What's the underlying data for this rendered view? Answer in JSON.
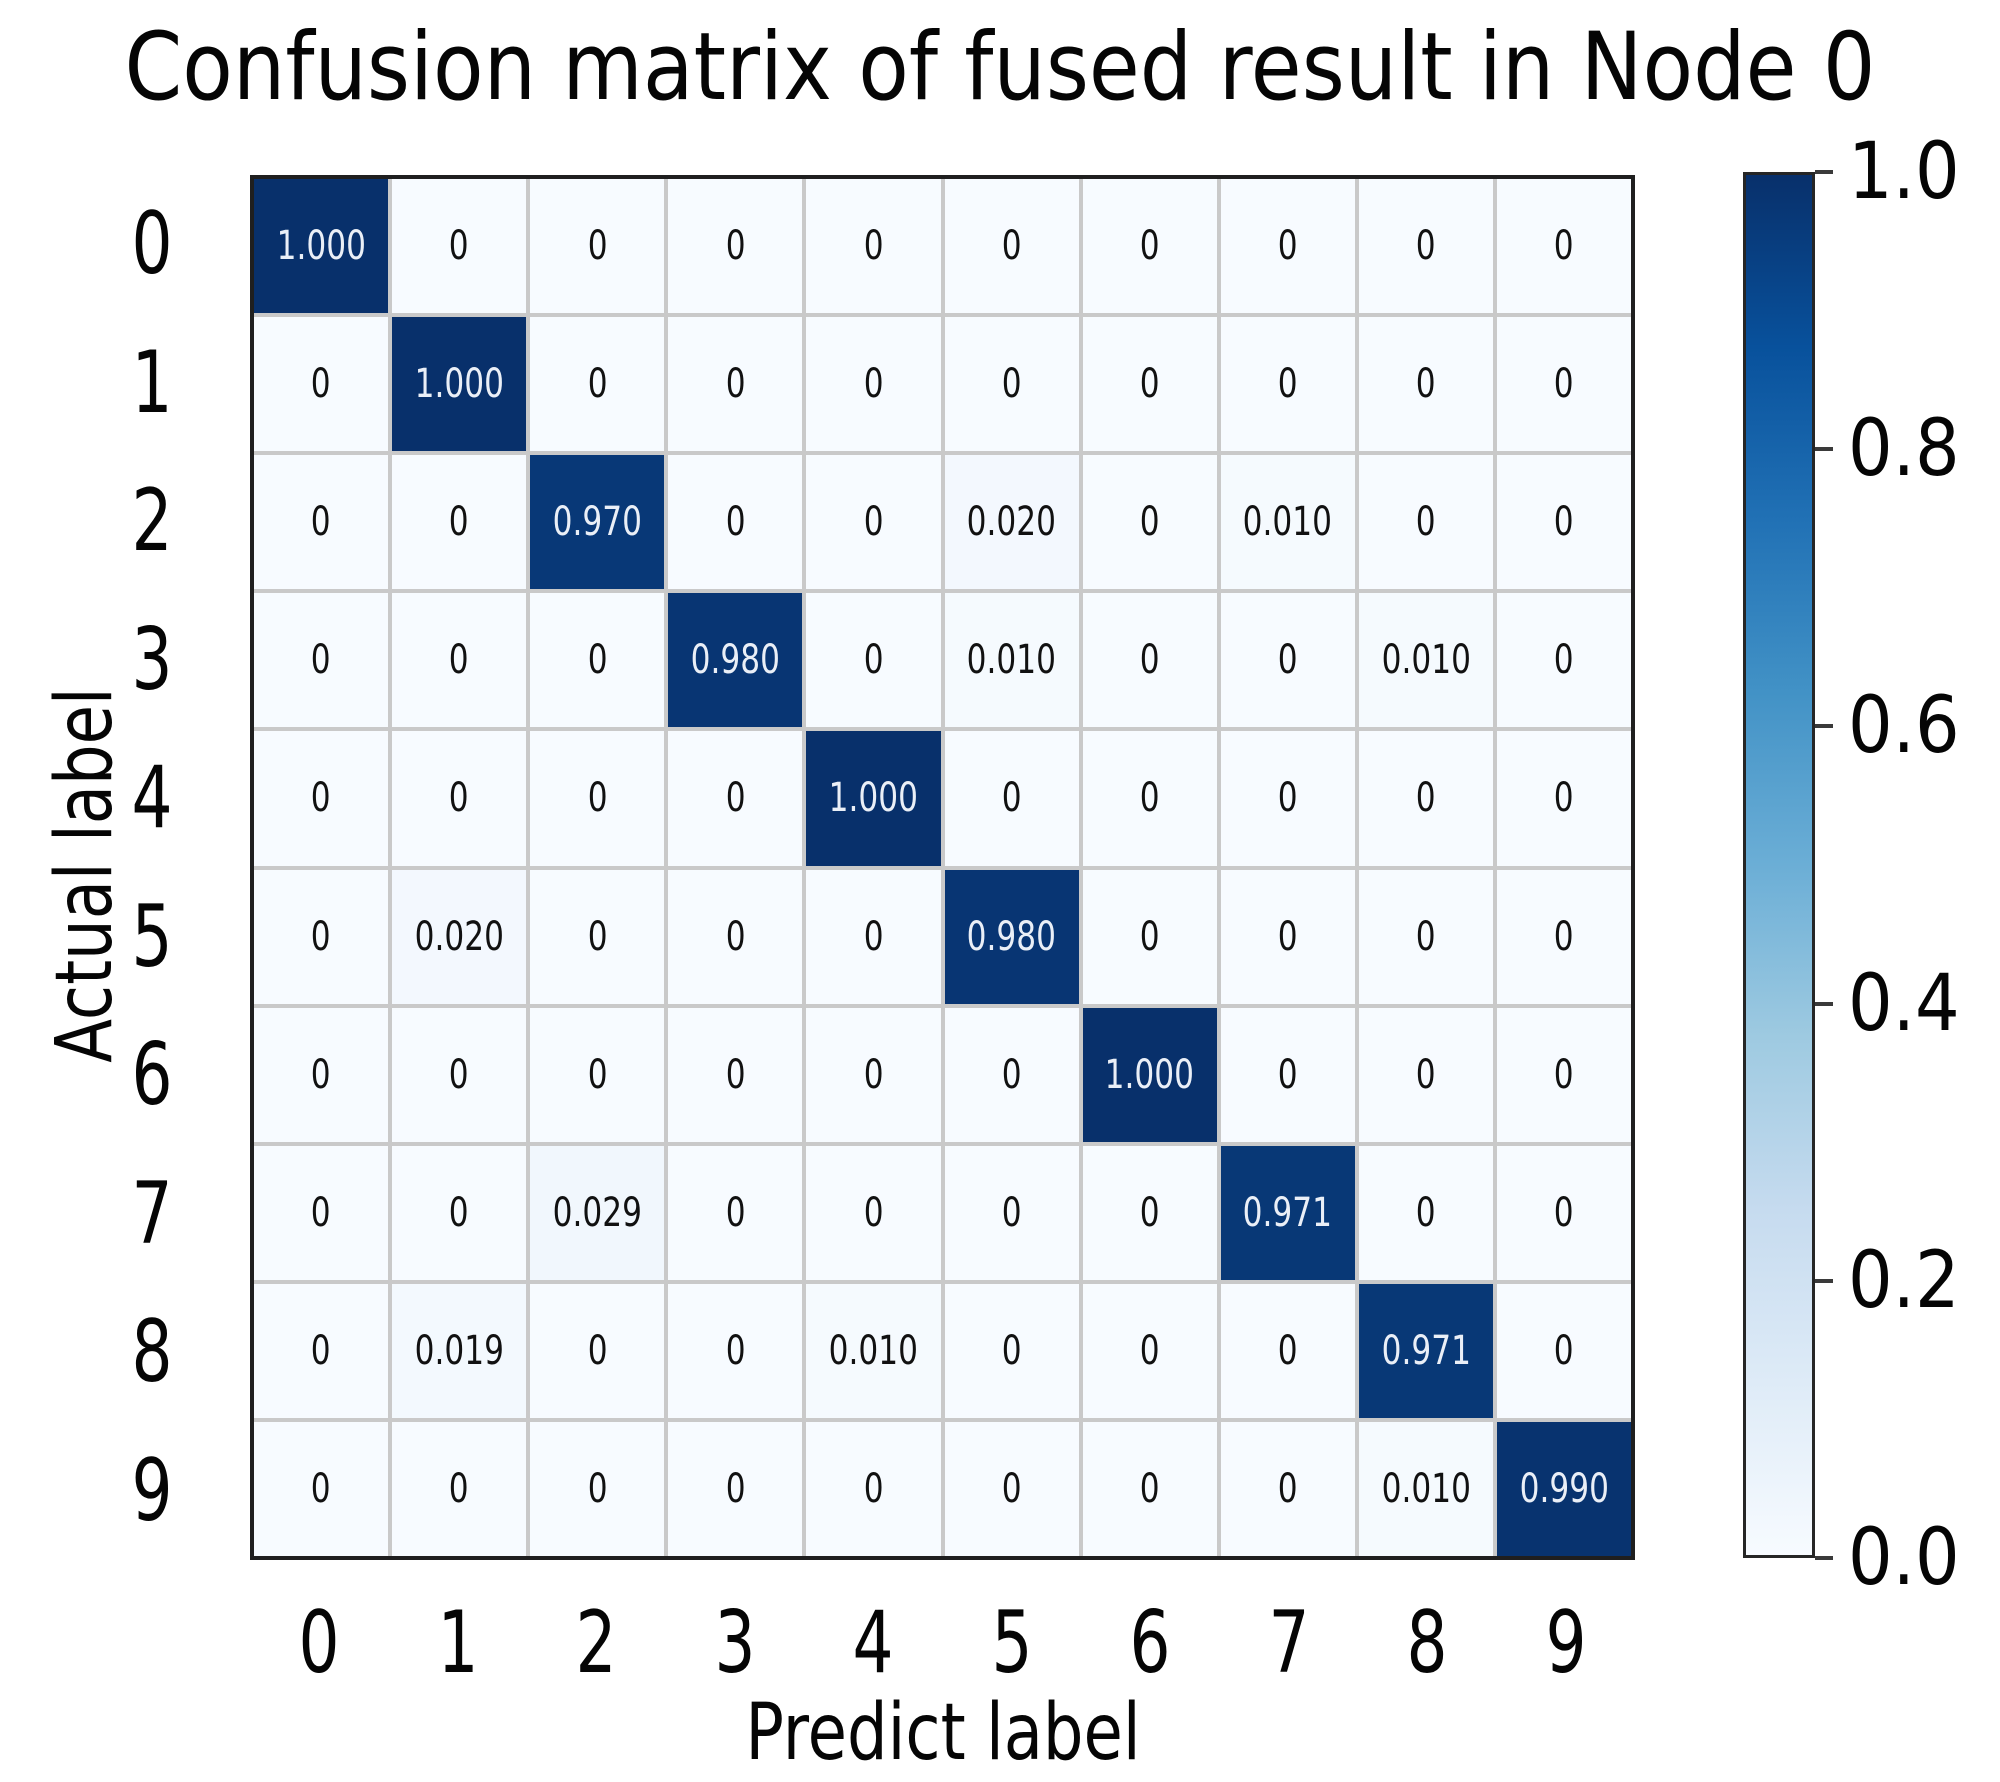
{
  "chart_data": {
    "type": "heatmap",
    "title": "Confusion matrix of fused result in Node 0",
    "xlabel": "Predict label",
    "ylabel": "Actual label",
    "x_tick_labels": [
      "0",
      "1",
      "2",
      "3",
      "4",
      "5",
      "6",
      "7",
      "8",
      "9"
    ],
    "y_tick_labels": [
      "0",
      "1",
      "2",
      "3",
      "4",
      "5",
      "6",
      "7",
      "8",
      "9"
    ],
    "matrix": [
      [
        1.0,
        0,
        0,
        0,
        0,
        0,
        0,
        0,
        0,
        0
      ],
      [
        0,
        1.0,
        0,
        0,
        0,
        0,
        0,
        0,
        0,
        0
      ],
      [
        0,
        0,
        0.97,
        0,
        0,
        0.02,
        0,
        0.01,
        0,
        0
      ],
      [
        0,
        0,
        0,
        0.98,
        0,
        0.01,
        0,
        0,
        0.01,
        0
      ],
      [
        0,
        0,
        0,
        0,
        1.0,
        0,
        0,
        0,
        0,
        0
      ],
      [
        0,
        0.02,
        0,
        0,
        0,
        0.98,
        0,
        0,
        0,
        0
      ],
      [
        0,
        0,
        0,
        0,
        0,
        0,
        1.0,
        0,
        0,
        0
      ],
      [
        0,
        0,
        0.029,
        0,
        0,
        0,
        0,
        0.971,
        0,
        0
      ],
      [
        0,
        0.019,
        0,
        0,
        0.01,
        0,
        0,
        0,
        0.971,
        0
      ],
      [
        0,
        0,
        0,
        0,
        0,
        0,
        0,
        0,
        0.01,
        0.99
      ]
    ],
    "value_range": [
      0.0,
      1.0
    ],
    "grid": true,
    "legend_position": "right-colorbar",
    "colorbar_ticks": [
      "1.0",
      "0.8",
      "0.6",
      "0.4",
      "0.2",
      "0.0"
    ],
    "colormap": {
      "name": "Blues",
      "anchors": [
        {
          "t": 0.0,
          "color": "#f7fbff"
        },
        {
          "t": 0.125,
          "color": "#deebf7"
        },
        {
          "t": 0.25,
          "color": "#c6dbef"
        },
        {
          "t": 0.375,
          "color": "#9ecae1"
        },
        {
          "t": 0.5,
          "color": "#6baed6"
        },
        {
          "t": 0.625,
          "color": "#4292c6"
        },
        {
          "t": 0.75,
          "color": "#2171b5"
        },
        {
          "t": 0.875,
          "color": "#08519c"
        },
        {
          "t": 1.0,
          "color": "#08306b"
        }
      ]
    },
    "colors": {
      "cell_text_dark": "#111111",
      "cell_text_light": "#eaeff7",
      "grid_line": "#c9c9c9",
      "plot_border": "#1f1f1f",
      "background": "#ffffff"
    }
  }
}
